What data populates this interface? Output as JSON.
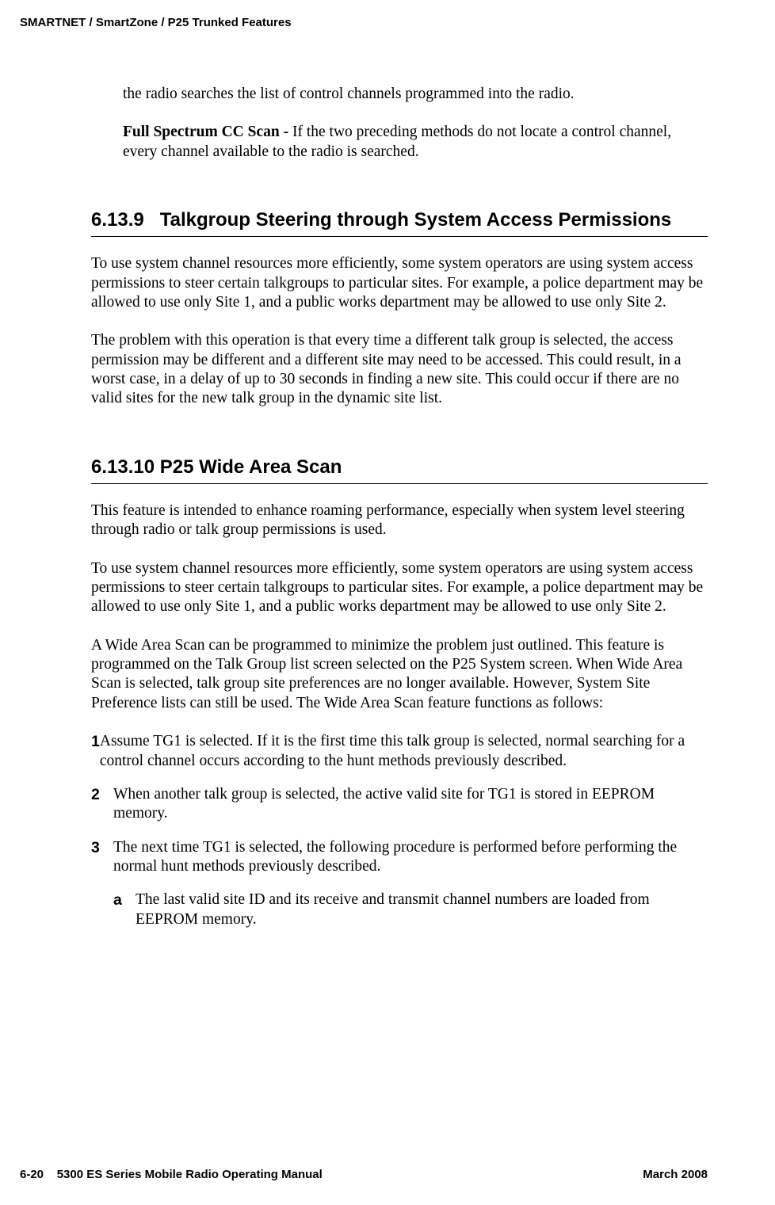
{
  "header": {
    "running": "SMARTNET / SmartZone / P25 Trunked Features"
  },
  "intro": {
    "p1": "the radio searches the list of control channels programmed into the radio.",
    "p2_bold": "Full Spectrum CC Scan - ",
    "p2_rest": "If the two preceding methods do not locate a control channel, every channel available to the radio is searched."
  },
  "section_6139": {
    "number": "6.13.9",
    "title": "Talkgroup Steering through System Access Permissions",
    "p1": "To use system channel resources more efficiently, some system operators are using system access permissions to steer certain talkgroups to particular sites. For example, a police department may be allowed to use only Site 1, and a public works department may be allowed to use only Site 2.",
    "p2": "The problem with this operation is that every time a different talk group is selected, the access permission may be different and a different site may need to be accessed. This could result, in a worst case, in a delay of up to 30 seconds in finding a new site. This could occur if there are no valid sites for the new talk group in the dynamic site list."
  },
  "section_61310": {
    "number": "6.13.10",
    "title": "P25 Wide Area Scan",
    "p1": "This feature is intended to enhance roaming performance, especially when system level steering through radio or talk group permissions is used.",
    "p2": "To use system channel resources more efficiently, some system operators are using system access permissions to steer certain talkgroups to particular sites. For example, a police department may be allowed to use only Site 1, and a public works department may be allowed to use only Site 2.",
    "p3": "A Wide Area Scan can be programmed to minimize the problem just outlined. This feature is programmed on the Talk Group list screen selected on the P25 System screen. When Wide Area Scan is selected, talk group site preferences are no longer available. However, System Site Preference lists can still be used. The Wide Area Scan feature functions as follows:",
    "steps": {
      "n1": "1",
      "t1": "Assume TG1 is selected. If it is the first time this talk group is selected, normal searching for a control channel occurs according to the hunt methods previously described.",
      "n2": "2",
      "t2": "When another talk group is selected, the active valid site for TG1 is stored in EEPROM memory.",
      "n3": "3",
      "t3": "The next time TG1 is selected, the following procedure is performed before performing the normal hunt methods previously described.",
      "a_marker": "a",
      "a_text": "The last valid site ID and its receive and transmit channel numbers are loaded from EEPROM memory."
    }
  },
  "footer": {
    "left_page": "6-20",
    "left_title": "5300 ES Series Mobile Radio Operating Manual",
    "right": "March 2008"
  }
}
